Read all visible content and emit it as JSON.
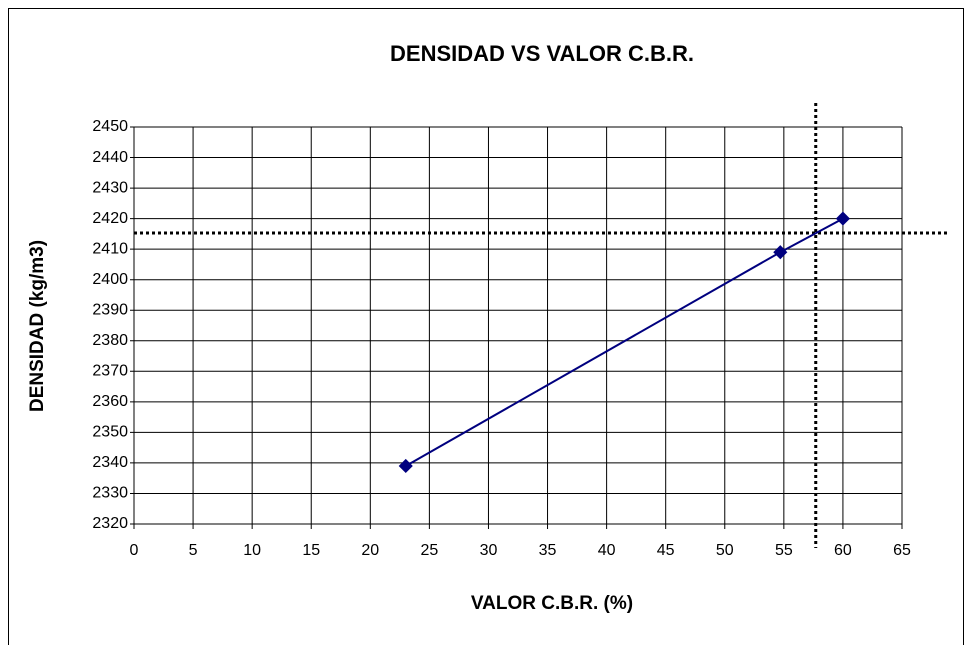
{
  "chart_data": {
    "type": "line",
    "title": "DENSIDAD  VS VALOR  C.B.R.",
    "x_label": "VALOR C.B.R. (%)",
    "y_label": "DENSIDAD  (kg/m3)",
    "series": [
      {
        "name": "Densidad",
        "color": "#00007f",
        "x": [
          23,
          54.7,
          60
        ],
        "values": [
          2339,
          2409,
          2420
        ]
      }
    ],
    "xlim": [
      0,
      65
    ],
    "xticks": [
      0,
      5,
      10,
      15,
      20,
      25,
      30,
      35,
      40,
      45,
      50,
      55,
      60,
      65
    ],
    "ylim": [
      2320,
      2450
    ],
    "yticks": [
      2320,
      2330,
      2340,
      2350,
      2360,
      2370,
      2380,
      2390,
      2400,
      2410,
      2420,
      2430,
      2440,
      2450
    ],
    "grid": true,
    "reference_x": [
      57.7
    ],
    "reference_y": [
      2415.3
    ]
  }
}
